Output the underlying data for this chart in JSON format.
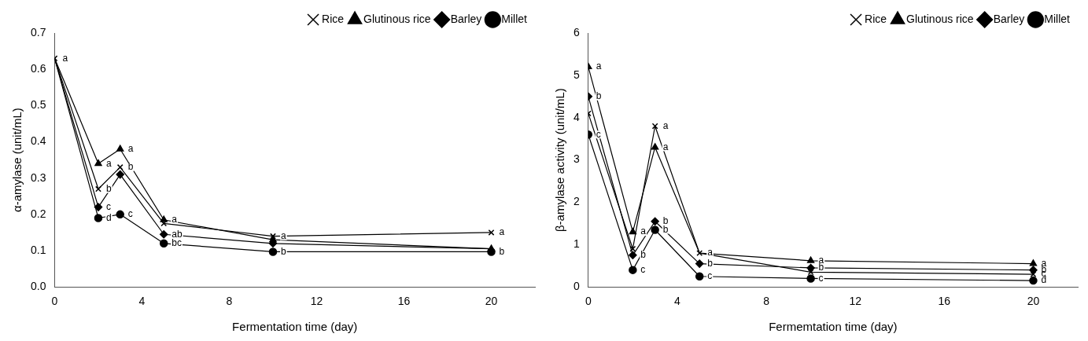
{
  "chart_data": [
    {
      "type": "line",
      "xlabel": "Fermentation time (day)",
      "ylabel": "α-amylase (unit/mL)",
      "x": [
        0,
        2,
        3,
        5,
        10,
        20
      ],
      "xlim": [
        0,
        22
      ],
      "xticks": [
        0,
        4,
        8,
        12,
        16,
        20
      ],
      "ylim": [
        0,
        0.7
      ],
      "yticks": [
        {
          "value": 0,
          "label": "0.0"
        },
        0.1,
        0.2,
        0.3,
        0.4,
        0.5,
        0.6,
        0.7
      ],
      "grid": false,
      "legend": "top right",
      "line_style": "solid",
      "series": [
        {
          "name": "Rice",
          "color": "#000000",
          "marker": "cross",
          "values": [
            0.63,
            0.27,
            0.33,
            0.175,
            0.14,
            0.15
          ]
        },
        {
          "name": "Glutinous rice",
          "color": "#000000",
          "marker": "triangle",
          "values": [
            0.63,
            0.34,
            0.38,
            0.185,
            0.13,
            0.105
          ]
        },
        {
          "name": "Barley",
          "color": "#000000",
          "marker": "diamond",
          "values": [
            0.63,
            0.22,
            0.31,
            0.145,
            0.12,
            0.105
          ]
        },
        {
          "name": "Millet",
          "color": "#000000",
          "marker": "circle",
          "values": [
            0.63,
            0.19,
            0.2,
            0.12,
            0.097,
            0.097
          ]
        }
      ],
      "annotations": [
        {
          "text": "a",
          "x": 0,
          "y": 0.63
        },
        {
          "text": "a",
          "x": 2,
          "y": 0.34
        },
        {
          "text": "b",
          "x": 2,
          "y": 0.27
        },
        {
          "text": "c",
          "x": 2,
          "y": 0.22
        },
        {
          "text": "d",
          "x": 2,
          "y": 0.19
        },
        {
          "text": "a",
          "x": 3,
          "y": 0.38
        },
        {
          "text": "b",
          "x": 3,
          "y": 0.33
        },
        {
          "text": "c",
          "x": 3,
          "y": 0.2
        },
        {
          "text": "a",
          "x": 5,
          "y": 0.185
        },
        {
          "text": "ab",
          "x": 5,
          "y": 0.145
        },
        {
          "text": "bc",
          "x": 5,
          "y": 0.12
        },
        {
          "text": "a",
          "x": 10,
          "y": 0.14
        },
        {
          "text": "b",
          "x": 10,
          "y": 0.097
        },
        {
          "text": "a",
          "x": 20,
          "y": 0.15
        },
        {
          "text": "b",
          "x": 20,
          "y": 0.097
        }
      ]
    },
    {
      "type": "line",
      "xlabel": "Fermemtation time (day)",
      "ylabel": "β-amylase activity (unit/mL)",
      "x": [
        0,
        2,
        3,
        5,
        10,
        20
      ],
      "xlim": [
        0,
        22
      ],
      "xticks": [
        0,
        4,
        8,
        12,
        16,
        20
      ],
      "ylim": [
        0,
        6
      ],
      "yticks": [
        0,
        1,
        2,
        3,
        4,
        5,
        6
      ],
      "grid": false,
      "legend": "top right",
      "line_style": "solid",
      "series": [
        {
          "name": "Rice",
          "color": "#000000",
          "marker": "cross",
          "values": [
            4.1,
            0.9,
            3.8,
            0.8,
            0.35,
            0.3
          ]
        },
        {
          "name": "Glutinous rice",
          "color": "#000000",
          "marker": "triangle",
          "values": [
            5.2,
            1.3,
            3.3,
            0.8,
            0.62,
            0.55
          ]
        },
        {
          "name": "Barley",
          "color": "#000000",
          "marker": "diamond",
          "values": [
            4.5,
            0.75,
            1.55,
            0.55,
            0.45,
            0.4
          ]
        },
        {
          "name": "Millet",
          "color": "#000000",
          "marker": "circle",
          "values": [
            3.6,
            0.4,
            1.35,
            0.25,
            0.2,
            0.15
          ]
        }
      ],
      "annotations": [
        {
          "text": "a",
          "x": 0,
          "y": 5.2
        },
        {
          "text": "b",
          "x": 0,
          "y": 4.5
        },
        {
          "text": "c",
          "x": 0,
          "y": 3.6
        },
        {
          "text": "a",
          "x": 2,
          "y": 1.3
        },
        {
          "text": "b",
          "x": 2,
          "y": 0.75
        },
        {
          "text": "c",
          "x": 2,
          "y": 0.4
        },
        {
          "text": "a",
          "x": 3,
          "y": 3.8
        },
        {
          "text": "a",
          "x": 3,
          "y": 3.3
        },
        {
          "text": "b",
          "x": 3,
          "y": 1.55
        },
        {
          "text": "b",
          "x": 3,
          "y": 1.35
        },
        {
          "text": "a",
          "x": 5,
          "y": 0.8
        },
        {
          "text": "b",
          "x": 5,
          "y": 0.55
        },
        {
          "text": "c",
          "x": 5,
          "y": 0.25
        },
        {
          "text": "a",
          "x": 10,
          "y": 0.62
        },
        {
          "text": "b",
          "x": 10,
          "y": 0.45
        },
        {
          "text": "c",
          "x": 10,
          "y": 0.2
        },
        {
          "text": "a",
          "x": 20,
          "y": 0.55
        },
        {
          "text": "b",
          "x": 20,
          "y": 0.4
        },
        {
          "text": "c",
          "x": 20,
          "y": 0.3
        },
        {
          "text": "d",
          "x": 20,
          "y": 0.15
        }
      ]
    }
  ]
}
